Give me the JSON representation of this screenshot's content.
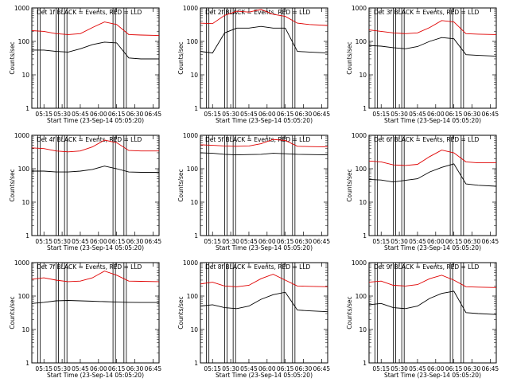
{
  "figure": {
    "x_ticks": [
      "05:15",
      "05:30",
      "05:45",
      "06:00",
      "06:15",
      "06:30",
      "06:45"
    ],
    "y_ticks": [
      "1",
      "10",
      "100",
      "1000"
    ],
    "ylabel": "Counts/sec",
    "xlabel": "Start Time (23-Sep-14 05:05:20)",
    "colors": {
      "events": "#000000",
      "lld": "#e00000"
    }
  },
  "chart_data": [
    {
      "type": "line",
      "title": "Det 1f BLACK = Events, RED = LLD",
      "ylabel": "Counts/sec",
      "xlabel": "Start Time (23-Sep-14 05:05:20)",
      "y_log": true,
      "ylim": [
        1,
        1000
      ],
      "xlim": [
        "05:05",
        "06:50"
      ],
      "x": [
        "05:05",
        "05:15",
        "05:25",
        "05:35",
        "05:45",
        "05:55",
        "06:05",
        "06:15",
        "06:25",
        "06:35",
        "06:50"
      ],
      "series": [
        {
          "values": [
            210,
            200,
            170,
            160,
            170,
            260,
            380,
            320,
            160,
            155,
            150
          ]
        },
        {
          "values": [
            55,
            55,
            50,
            48,
            60,
            80,
            95,
            90,
            32,
            30,
            30
          ]
        }
      ]
    },
    {
      "type": "line",
      "title": "Det 2f BLACK = Events, RED = LLD",
      "ylabel": "Counts/sec",
      "xlabel": "Start Time (23-Sep-14 05:05:20)",
      "y_log": true,
      "ylim": [
        1,
        1000
      ],
      "xlim": [
        "05:05",
        "06:50"
      ],
      "x": [
        "05:05",
        "05:15",
        "05:25",
        "05:35",
        "05:45",
        "05:55",
        "06:05",
        "06:15",
        "06:25",
        "06:35",
        "06:50"
      ],
      "series": [
        {
          "values": [
            350,
            340,
            600,
            800,
            750,
            900,
            650,
            560,
            350,
            320,
            300
          ]
        },
        {
          "values": [
            50,
            45,
            180,
            250,
            250,
            280,
            250,
            250,
            50,
            48,
            45
          ]
        }
      ]
    },
    {
      "type": "line",
      "title": "Det 3f BLACK = Events, RED = LLD",
      "ylabel": "Counts/sec",
      "xlabel": "Start Time (23-Sep-14 05:05:20)",
      "y_log": true,
      "ylim": [
        1,
        1000
      ],
      "xlim": [
        "05:05",
        "06:50"
      ],
      "x": [
        "05:05",
        "05:15",
        "05:25",
        "05:35",
        "05:45",
        "05:55",
        "06:05",
        "06:15",
        "06:25",
        "06:35",
        "06:50"
      ],
      "series": [
        {
          "values": [
            220,
            200,
            180,
            170,
            180,
            260,
            420,
            380,
            170,
            165,
            160
          ]
        },
        {
          "values": [
            75,
            72,
            65,
            60,
            70,
            100,
            130,
            120,
            40,
            38,
            36
          ]
        }
      ]
    },
    {
      "type": "line",
      "title": "Det 4f BLACK = Events, RED = LLD",
      "ylabel": "Counts/sec",
      "xlabel": "Start Time (23-Sep-14 05:05:20)",
      "y_log": true,
      "ylim": [
        1,
        1000
      ],
      "xlim": [
        "05:05",
        "06:50"
      ],
      "x": [
        "05:05",
        "05:15",
        "05:25",
        "05:35",
        "05:45",
        "05:55",
        "06:05",
        "06:15",
        "06:25",
        "06:35",
        "06:50"
      ],
      "series": [
        {
          "values": [
            420,
            400,
            340,
            320,
            340,
            450,
            720,
            600,
            350,
            340,
            340
          ]
        },
        {
          "values": [
            85,
            85,
            80,
            80,
            85,
            95,
            120,
            100,
            80,
            78,
            78
          ]
        }
      ]
    },
    {
      "type": "line",
      "title": "Det 5f BLACK = Events, RED = LLD",
      "ylabel": "Counts/sec",
      "xlabel": "Start Time (23-Sep-14 05:05:20)",
      "y_log": true,
      "ylim": [
        1,
        1000
      ],
      "xlim": [
        "05:05",
        "06:50"
      ],
      "x": [
        "05:05",
        "05:15",
        "05:25",
        "05:35",
        "05:45",
        "05:55",
        "06:05",
        "06:15",
        "06:25",
        "06:35",
        "06:50"
      ],
      "series": [
        {
          "values": [
            520,
            500,
            480,
            470,
            480,
            560,
            750,
            700,
            470,
            460,
            450
          ]
        },
        {
          "values": [
            300,
            290,
            270,
            260,
            265,
            270,
            290,
            280,
            270,
            265,
            260
          ]
        }
      ]
    },
    {
      "type": "line",
      "title": "Det 6f BLACK = Events, RED = LLD",
      "ylabel": "Counts/sec",
      "xlabel": "Start Time (23-Sep-14 05:05:20)",
      "y_log": true,
      "ylim": [
        1,
        1000
      ],
      "xlim": [
        "05:05",
        "06:50"
      ],
      "x": [
        "05:05",
        "05:15",
        "05:25",
        "05:35",
        "05:45",
        "05:55",
        "06:05",
        "06:15",
        "06:25",
        "06:35",
        "06:50"
      ],
      "series": [
        {
          "values": [
            170,
            160,
            130,
            125,
            135,
            230,
            360,
            300,
            160,
            150,
            150
          ]
        },
        {
          "values": [
            48,
            46,
            40,
            45,
            50,
            80,
            110,
            140,
            35,
            32,
            30
          ]
        }
      ]
    },
    {
      "type": "line",
      "title": "Det 7f BLACK = Events, RED = LLD",
      "ylabel": "Counts/sec",
      "xlabel": "Start Time (23-Sep-14 05:05:20)",
      "y_log": true,
      "ylim": [
        1,
        1000
      ],
      "xlim": [
        "05:05",
        "06:50"
      ],
      "x": [
        "05:05",
        "05:15",
        "05:25",
        "05:35",
        "05:45",
        "05:55",
        "06:05",
        "06:15",
        "06:25",
        "06:35",
        "06:50"
      ],
      "series": [
        {
          "values": [
            320,
            350,
            300,
            270,
            280,
            350,
            560,
            420,
            280,
            275,
            270
          ]
        },
        {
          "values": [
            60,
            65,
            72,
            74,
            72,
            70,
            68,
            66,
            65,
            64,
            64
          ]
        }
      ]
    },
    {
      "type": "line",
      "title": "Det 8f BLACK = Events, RED = LLD",
      "ylabel": "Counts/sec",
      "xlabel": "Start Time (23-Sep-14 05:05:20)",
      "y_log": true,
      "ylim": [
        1,
        1000
      ],
      "xlim": [
        "05:05",
        "06:50"
      ],
      "x": [
        "05:05",
        "05:15",
        "05:25",
        "05:35",
        "05:45",
        "05:55",
        "06:05",
        "06:15",
        "06:25",
        "06:35",
        "06:50"
      ],
      "series": [
        {
          "values": [
            230,
            260,
            200,
            190,
            210,
            330,
            450,
            300,
            200,
            195,
            190
          ]
        },
        {
          "values": [
            50,
            55,
            45,
            42,
            50,
            80,
            110,
            130,
            38,
            36,
            34
          ]
        }
      ]
    },
    {
      "type": "line",
      "title": "Det 9f BLACK = Events, RED = LLD",
      "ylabel": "Counts/sec",
      "xlabel": "Start Time (23-Sep-14 05:05:20)",
      "y_log": true,
      "ylim": [
        1,
        1000
      ],
      "xlim": [
        "05:05",
        "06:50"
      ],
      "x": [
        "05:05",
        "05:15",
        "05:25",
        "05:35",
        "05:45",
        "05:55",
        "06:05",
        "06:15",
        "06:25",
        "06:35",
        "06:50"
      ],
      "series": [
        {
          "values": [
            260,
            280,
            210,
            200,
            220,
            330,
            420,
            300,
            190,
            185,
            180
          ]
        },
        {
          "values": [
            55,
            60,
            45,
            42,
            50,
            85,
            120,
            140,
            32,
            30,
            28
          ]
        }
      ]
    }
  ]
}
